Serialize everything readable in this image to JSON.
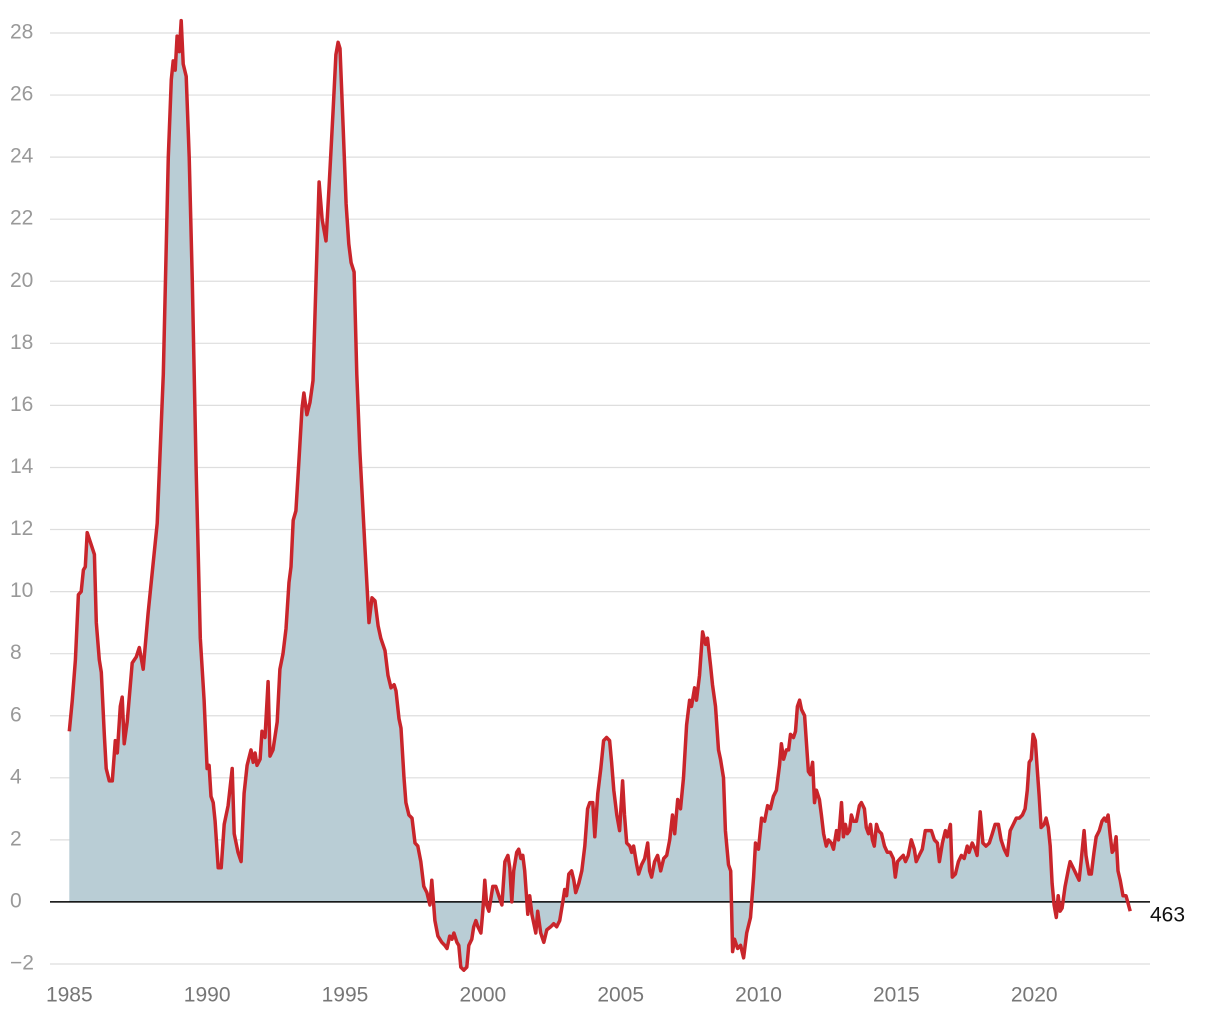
{
  "chart_data": {
    "type": "area",
    "annotation": "463",
    "color": "#c9252b",
    "fill": "#b9cdd5",
    "grid": true,
    "xlim": [
      1984.3,
      2024.2
    ],
    "xticks": [
      1985,
      1990,
      1995,
      2000,
      2005,
      2010,
      2015,
      2020
    ],
    "ylim": [
      -2,
      28
    ],
    "yticks": [
      {
        "value": -2,
        "label": "−2"
      },
      0,
      2,
      4,
      6,
      8,
      10,
      12,
      14,
      16,
      18,
      20,
      22,
      24,
      26,
      28
    ],
    "x": [
      1985.0,
      1985.11,
      1985.22,
      1985.33,
      1985.43,
      1985.51,
      1985.58,
      1985.65,
      1985.76,
      1985.91,
      1985.98,
      1986.09,
      1986.16,
      1986.27,
      1986.34,
      1986.45,
      1986.56,
      1986.67,
      1986.74,
      1986.85,
      1986.92,
      1986.99,
      1987.1,
      1987.28,
      1987.43,
      1987.54,
      1987.68,
      1987.86,
      1988.19,
      1988.41,
      1988.59,
      1988.7,
      1988.77,
      1988.84,
      1988.91,
      1988.99,
      1989.06,
      1989.13,
      1989.24,
      1989.35,
      1989.46,
      1989.6,
      1989.75,
      1989.89,
      1990.0,
      1990.07,
      1990.14,
      1990.22,
      1990.29,
      1990.4,
      1990.51,
      1990.62,
      1990.76,
      1990.91,
      1990.98,
      1991.12,
      1991.23,
      1991.34,
      1991.45,
      1991.59,
      1991.67,
      1991.74,
      1991.81,
      1991.92,
      1991.99,
      1992.1,
      1992.21,
      1992.28,
      1992.39,
      1992.54,
      1992.64,
      1992.75,
      1992.86,
      1992.97,
      1993.04,
      1993.12,
      1993.22,
      1993.33,
      1993.44,
      1993.51,
      1993.62,
      1993.73,
      1993.84,
      1993.95,
      1994.06,
      1994.17,
      1994.31,
      1994.42,
      1994.57,
      1994.67,
      1994.75,
      1994.82,
      1994.93,
      1995.04,
      1995.14,
      1995.22,
      1995.33,
      1995.43,
      1995.54,
      1995.72,
      1995.87,
      1995.98,
      1996.09,
      1996.2,
      1996.3,
      1996.45,
      1996.56,
      1996.67,
      1996.78,
      1996.85,
      1996.96,
      1997.03,
      1997.14,
      1997.21,
      1997.32,
      1997.43,
      1997.54,
      1997.64,
      1997.75,
      1997.86,
      1997.97,
      1998.08,
      1998.15,
      1998.26,
      1998.37,
      1998.51,
      1998.62,
      1998.7,
      1998.8,
      1998.88,
      1998.95,
      1999.06,
      1999.13,
      1999.2,
      1999.31,
      1999.42,
      1999.49,
      1999.6,
      1999.67,
      1999.75,
      1999.82,
      1999.93,
      2000.0,
      2000.07,
      2000.14,
      2000.22,
      2000.36,
      2000.47,
      2000.58,
      2000.69,
      2000.8,
      2000.91,
      2000.98,
      2001.05,
      2001.12,
      2001.23,
      2001.3,
      2001.38,
      2001.45,
      2001.52,
      2001.63,
      2001.7,
      2001.78,
      2001.92,
      2001.99,
      2002.1,
      2002.21,
      2002.32,
      2002.46,
      2002.57,
      2002.68,
      2002.79,
      2002.9,
      2002.97,
      2003.04,
      2003.12,
      2003.22,
      2003.3,
      2003.37,
      2003.48,
      2003.59,
      2003.7,
      2003.8,
      2003.88,
      2003.99,
      2004.06,
      2004.17,
      2004.28,
      2004.38,
      2004.49,
      2004.6,
      2004.67,
      2004.75,
      2004.86,
      2004.96,
      2005.07,
      2005.14,
      2005.22,
      2005.33,
      2005.4,
      2005.47,
      2005.58,
      2005.65,
      2005.76,
      2005.87,
      2005.98,
      2006.05,
      2006.12,
      2006.23,
      2006.34,
      2006.45,
      2006.56,
      2006.67,
      2006.78,
      2006.88,
      2006.96,
      2007.07,
      2007.17,
      2007.28,
      2007.39,
      2007.5,
      2007.57,
      2007.68,
      2007.75,
      2007.86,
      2007.97,
      2008.08,
      2008.15,
      2008.26,
      2008.33,
      2008.44,
      2008.55,
      2008.62,
      2008.73,
      2008.8,
      2008.91,
      2008.99,
      2009.06,
      2009.13,
      2009.24,
      2009.35,
      2009.46,
      2009.57,
      2009.71,
      2009.82,
      2009.89,
      2010.0,
      2010.11,
      2010.22,
      2010.33,
      2010.43,
      2010.54,
      2010.65,
      2010.76,
      2010.83,
      2010.91,
      2011.01,
      2011.09,
      2011.16,
      2011.27,
      2011.34,
      2011.41,
      2011.49,
      2011.56,
      2011.67,
      2011.74,
      2011.81,
      2011.88,
      2011.96,
      2012.03,
      2012.1,
      2012.21,
      2012.28,
      2012.36,
      2012.46,
      2012.54,
      2012.64,
      2012.72,
      2012.83,
      2012.9,
      2013.01,
      2013.08,
      2013.15,
      2013.22,
      2013.3,
      2013.37,
      2013.44,
      2013.55,
      2013.66,
      2013.73,
      2013.84,
      2013.91,
      2013.99,
      2014.06,
      2014.13,
      2014.2,
      2014.28,
      2014.35,
      2014.46,
      2014.57,
      2014.67,
      2014.78,
      2014.89,
      2014.96,
      2015.04,
      2015.14,
      2015.25,
      2015.33,
      2015.43,
      2015.54,
      2015.65,
      2015.72,
      2015.83,
      2015.94,
      2016.05,
      2016.16,
      2016.27,
      2016.38,
      2016.49,
      2016.56,
      2016.67,
      2016.78,
      2016.85,
      2016.96,
      2017.03,
      2017.14,
      2017.25,
      2017.36,
      2017.46,
      2017.57,
      2017.64,
      2017.75,
      2017.86,
      2017.93,
      2018.04,
      2018.14,
      2018.25,
      2018.37,
      2018.48,
      2018.58,
      2018.7,
      2018.8,
      2018.91,
      2019.02,
      2019.13,
      2019.24,
      2019.35,
      2019.46,
      2019.57,
      2019.67,
      2019.75,
      2019.82,
      2019.89,
      2019.96,
      2020.04,
      2020.11,
      2020.18,
      2020.25,
      2020.36,
      2020.43,
      2020.51,
      2020.58,
      2020.65,
      2020.72,
      2020.8,
      2020.87,
      2020.94,
      2021.01,
      2021.12,
      2021.23,
      2021.3,
      2021.41,
      2021.52,
      2021.63,
      2021.7,
      2021.81,
      2021.88,
      2021.99,
      2022.07,
      2022.17,
      2022.25,
      2022.36,
      2022.46,
      2022.54,
      2022.61,
      2022.68,
      2022.75,
      2022.83,
      2022.9,
      2022.97,
      2023.04,
      2023.12,
      2023.22,
      2023.33,
      2023.48
    ],
    "values": [
      5.5,
      6.5,
      7.8,
      9.9,
      10.0,
      10.7,
      10.8,
      11.9,
      11.6,
      11.2,
      9.0,
      7.8,
      7.4,
      5.4,
      4.3,
      3.9,
      3.9,
      5.2,
      4.8,
      6.3,
      6.6,
      5.1,
      5.8,
      7.7,
      7.9,
      8.2,
      7.5,
      9.3,
      12.2,
      17.0,
      24.0,
      26.5,
      27.1,
      26.8,
      27.9,
      27.4,
      28.4,
      27.0,
      26.6,
      24.0,
      20.0,
      14.0,
      8.5,
      6.5,
      4.3,
      4.4,
      3.4,
      3.2,
      2.6,
      1.1,
      1.1,
      2.5,
      3.1,
      4.3,
      2.2,
      1.6,
      1.3,
      3.5,
      4.4,
      4.9,
      4.5,
      4.8,
      4.4,
      4.6,
      5.5,
      5.3,
      7.1,
      4.7,
      4.9,
      5.8,
      7.5,
      8.0,
      8.8,
      10.3,
      10.8,
      12.3,
      12.6,
      14.2,
      15.9,
      16.4,
      15.7,
      16.1,
      16.8,
      20.0,
      23.2,
      22.0,
      21.3,
      23.0,
      25.5,
      27.3,
      27.7,
      27.5,
      25.0,
      22.5,
      21.2,
      20.6,
      20.3,
      17.0,
      14.5,
      11.5,
      9.0,
      9.8,
      9.7,
      8.9,
      8.5,
      8.1,
      7.3,
      6.9,
      7.0,
      6.8,
      5.9,
      5.6,
      4.0,
      3.2,
      2.8,
      2.7,
      1.9,
      1.8,
      1.3,
      0.5,
      0.3,
      -0.1,
      0.7,
      -0.6,
      -1.1,
      -1.3,
      -1.4,
      -1.5,
      -1.1,
      -1.2,
      -1.0,
      -1.3,
      -1.4,
      -2.1,
      -2.2,
      -2.1,
      -1.4,
      -1.2,
      -0.8,
      -0.6,
      -0.8,
      -1.0,
      -0.3,
      0.7,
      -0.1,
      -0.3,
      0.5,
      0.5,
      0.2,
      -0.1,
      1.3,
      1.5,
      1.1,
      0.0,
      1.0,
      1.6,
      1.7,
      1.4,
      1.5,
      1.0,
      -0.4,
      0.2,
      -0.4,
      -1.0,
      -0.3,
      -1.0,
      -1.3,
      -0.9,
      -0.8,
      -0.7,
      -0.8,
      -0.6,
      0.0,
      0.4,
      0.2,
      0.9,
      1.0,
      0.7,
      0.3,
      0.6,
      1.0,
      1.8,
      3.0,
      3.2,
      3.2,
      2.1,
      3.5,
      4.3,
      5.2,
      5.3,
      5.2,
      4.5,
      3.6,
      2.8,
      2.3,
      3.9,
      2.8,
      1.9,
      1.8,
      1.6,
      1.8,
      1.2,
      0.9,
      1.2,
      1.4,
      1.9,
      1.0,
      0.8,
      1.3,
      1.5,
      1.0,
      1.4,
      1.5,
      2.0,
      2.8,
      2.2,
      3.3,
      3.0,
      4.0,
      5.7,
      6.5,
      6.3,
      6.9,
      6.5,
      7.3,
      8.7,
      8.3,
      8.5,
      7.6,
      7.0,
      6.3,
      4.9,
      4.6,
      4.0,
      2.3,
      1.2,
      1.0,
      -1.6,
      -1.2,
      -1.5,
      -1.4,
      -1.8,
      -1.0,
      -0.5,
      0.8,
      1.9,
      1.7,
      2.7,
      2.6,
      3.1,
      3.0,
      3.4,
      3.6,
      4.4,
      5.1,
      4.6,
      4.9,
      4.9,
      5.4,
      5.3,
      5.5,
      6.3,
      6.5,
      6.2,
      6.0,
      5.1,
      4.2,
      4.1,
      4.5,
      3.2,
      3.6,
      3.3,
      2.8,
      2.2,
      1.8,
      2.0,
      1.9,
      1.7,
      2.3,
      2.0,
      3.2,
      2.1,
      2.5,
      2.2,
      2.3,
      2.8,
      2.6,
      2.6,
      3.1,
      3.2,
      3.0,
      2.4,
      2.2,
      2.5,
      2.0,
      1.8,
      2.5,
      2.3,
      2.2,
      1.8,
      1.6,
      1.6,
      1.4,
      0.8,
      1.3,
      1.4,
      1.5,
      1.3,
      1.5,
      2.0,
      1.7,
      1.3,
      1.5,
      1.7,
      2.3,
      2.3,
      2.3,
      2.0,
      1.9,
      1.3,
      1.9,
      2.3,
      2.1,
      2.5,
      0.8,
      0.9,
      1.3,
      1.5,
      1.4,
      1.8,
      1.6,
      1.9,
      1.7,
      1.5,
      2.9,
      1.9,
      1.8,
      1.9,
      2.2,
      2.5,
      2.5,
      2.0,
      1.7,
      1.5,
      2.3,
      2.5,
      2.7,
      2.7,
      2.8,
      3.0,
      3.6,
      4.5,
      4.6,
      5.4,
      5.2,
      4.3,
      3.4,
      2.4,
      2.5,
      2.7,
      2.4,
      1.8,
      0.6,
      -0.1,
      -0.5,
      0.2,
      -0.3,
      -0.2,
      0.5,
      1.0,
      1.3,
      1.1,
      0.9,
      0.7,
      1.3,
      2.3,
      1.5,
      0.9,
      0.9,
      1.6,
      2.1,
      2.3,
      2.6,
      2.7,
      2.6,
      2.8,
      2.2,
      1.6,
      1.7,
      2.1,
      1.0,
      0.7,
      0.2,
      0.2,
      -0.3
    ]
  }
}
